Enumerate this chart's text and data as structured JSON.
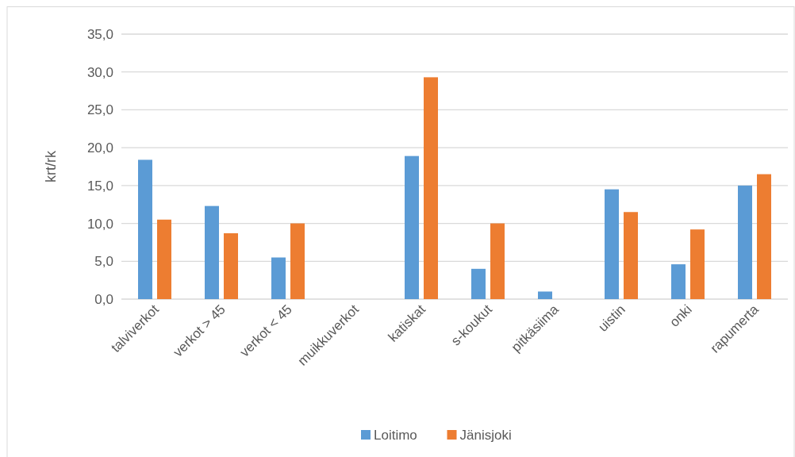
{
  "chart_data": {
    "type": "bar",
    "ylabel": "krt/rk",
    "categories": [
      "talviverkot",
      "verkot > 45",
      "verkot < 45",
      "muikkuverkot",
      "katiskat",
      "s-koukut",
      "pitkäsiima",
      "uistin",
      "onki",
      "rapumerta"
    ],
    "series": [
      {
        "name": "Loitimo",
        "color": "#5b9bd5",
        "values": [
          18.4,
          12.3,
          5.5,
          0,
          18.9,
          4.0,
          1.0,
          14.5,
          4.6,
          15.0
        ]
      },
      {
        "name": "Jänisjoki",
        "color": "#ed7d31",
        "values": [
          10.5,
          8.7,
          10.0,
          0,
          29.3,
          10.0,
          0,
          11.5,
          9.2,
          16.5
        ]
      }
    ],
    "ylim": [
      0,
      35
    ],
    "yticks": [
      {
        "value": 0,
        "label": "0,0"
      },
      {
        "value": 5,
        "label": "5,0"
      },
      {
        "value": 10,
        "label": "10,0"
      },
      {
        "value": 15,
        "label": "15,0"
      },
      {
        "value": 20,
        "label": "20,0"
      },
      {
        "value": 25,
        "label": "25,0"
      },
      {
        "value": 30,
        "label": "30,0"
      },
      {
        "value": 35,
        "label": "35,0"
      }
    ],
    "grid": "y",
    "legend": "bottom"
  }
}
